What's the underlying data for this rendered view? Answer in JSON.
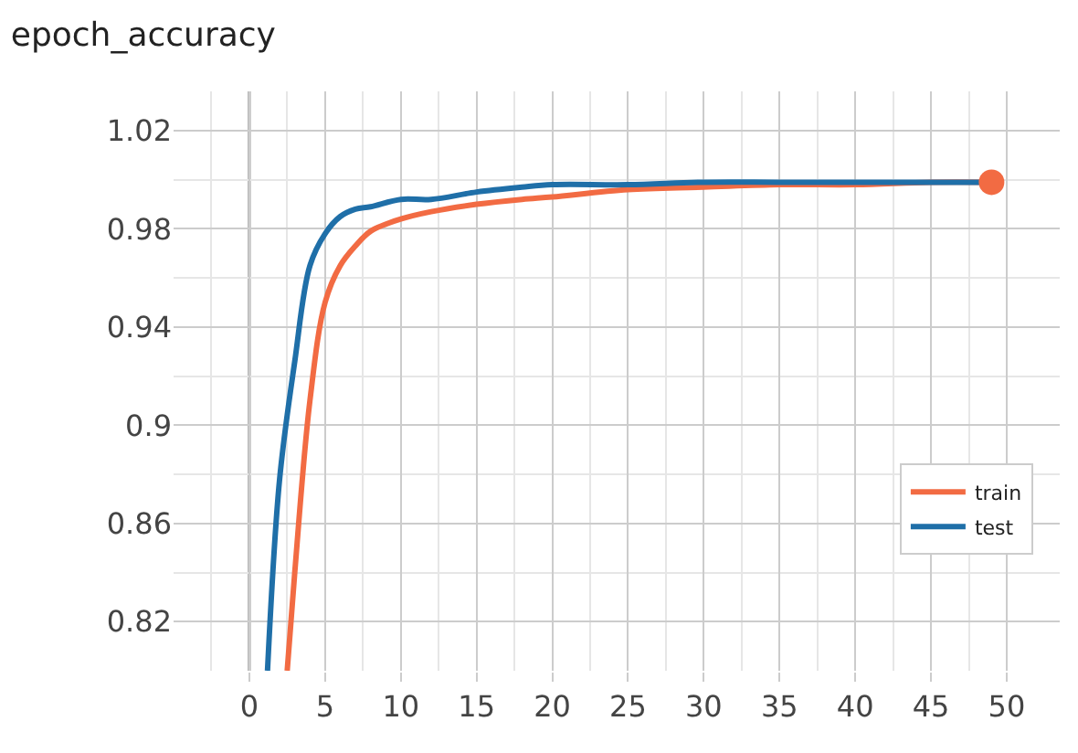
{
  "chart_data": {
    "type": "line",
    "title": "epoch_accuracy",
    "xlim": [
      -5,
      53.5
    ],
    "ylim": [
      0.8,
      1.036
    ],
    "xticks": [
      0,
      5,
      10,
      15,
      20,
      25,
      30,
      35,
      40,
      45,
      50
    ],
    "yticks": [
      0.82,
      0.86,
      0.9,
      0.94,
      0.98,
      1.02
    ],
    "grid": true,
    "legend": "bottom right",
    "marker": "none",
    "line_style": "solid",
    "ref_lines": [
      {
        "axis": "x",
        "value": 0,
        "color": "#888888"
      }
    ],
    "series": [
      {
        "name": "train",
        "color": "#f26b43",
        "x": [
          2.5,
          3,
          4,
          5,
          6,
          7,
          8,
          10,
          12,
          15,
          18,
          20,
          25,
          30,
          35,
          40,
          45,
          49
        ],
        "values": [
          0.8,
          0.84,
          0.91,
          0.95,
          0.965,
          0.973,
          0.979,
          0.984,
          0.987,
          0.99,
          0.992,
          0.993,
          0.996,
          0.997,
          0.998,
          0.998,
          0.999,
          0.999
        ]
      },
      {
        "name": "test",
        "color": "#1f6fa8",
        "x": [
          1.2,
          2,
          3,
          4,
          5,
          6,
          7,
          8,
          10,
          12,
          15,
          18,
          20,
          25,
          30,
          35,
          40,
          45,
          49
        ],
        "values": [
          0.8,
          0.878,
          0.926,
          0.965,
          0.978,
          0.985,
          0.988,
          0.989,
          0.992,
          0.992,
          0.995,
          0.997,
          0.998,
          0.998,
          0.999,
          0.999,
          0.999,
          0.999,
          0.999
        ]
      },
      {
        "type": "scatter",
        "marker": "circle",
        "color": "#f26b43",
        "x": [
          49
        ],
        "values": [
          0.999
        ]
      }
    ]
  }
}
